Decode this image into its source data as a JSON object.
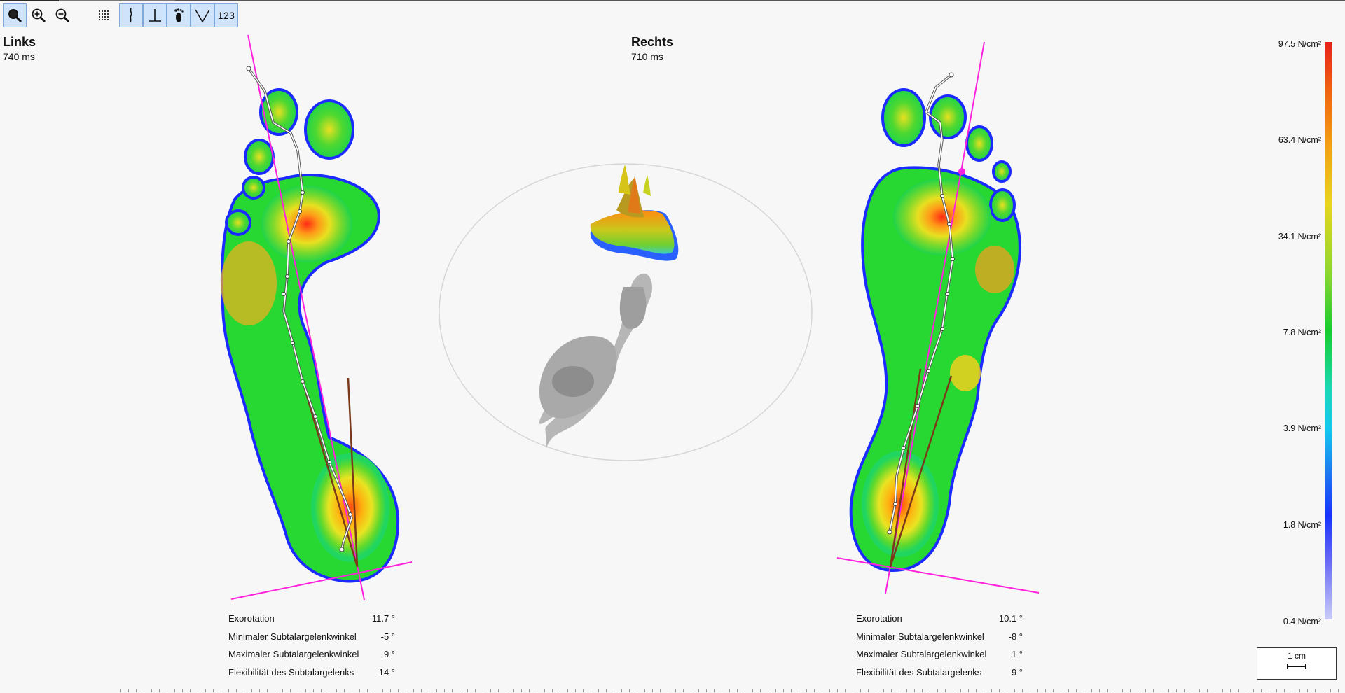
{
  "toolbar": {
    "buttons": [
      {
        "name": "zoom-select",
        "icon": "magnifier-icon"
      },
      {
        "name": "zoom-in",
        "icon": "zoom-in-icon"
      },
      {
        "name": "zoom-out",
        "icon": "zoom-out-icon"
      },
      {
        "name": "grid",
        "icon": "grid-dots-icon"
      },
      {
        "name": "gait-line",
        "icon": "gait-line-icon"
      },
      {
        "name": "perpendicular",
        "icon": "perpendicular-icon"
      },
      {
        "name": "foot",
        "icon": "foot-icon"
      },
      {
        "name": "angle",
        "icon": "angle-icon"
      },
      {
        "name": "values",
        "label": "123"
      }
    ]
  },
  "left": {
    "title": "Links",
    "duration": "740 ms",
    "stats": [
      {
        "label": "Exorotation",
        "value": "11.7 °"
      },
      {
        "label": "Minimaler Subtalargelenkwinkel",
        "value": "-5 °"
      },
      {
        "label": "Maximaler Subtalargelenkwinkel",
        "value": "9 °"
      },
      {
        "label": "Flexibilität des Subtalargelenks",
        "value": "14 °"
      }
    ]
  },
  "right": {
    "title": "Rechts",
    "duration": "710 ms",
    "stats": [
      {
        "label": "Exorotation",
        "value": "10.1 °"
      },
      {
        "label": "Minimaler Subtalargelenkwinkel",
        "value": "-8 °"
      },
      {
        "label": "Maximaler Subtalargelenkwinkel",
        "value": "1 °"
      },
      {
        "label": "Flexibilität des Subtalargelenks",
        "value": "9 °"
      }
    ]
  },
  "legend": {
    "labels": [
      "97.5 N/cm²",
      "63.4 N/cm²",
      "34.1 N/cm²",
      "7.8 N/cm²",
      "3.9 N/cm²",
      "1.8 N/cm²",
      "0.4 N/cm²"
    ]
  },
  "scale": {
    "label": "1 cm"
  },
  "colors": {
    "axis_line": "#ff22dd",
    "angle_line": "#7a3a1a",
    "gait_line": "#ffffff",
    "selected_button": "#cfe3fb"
  }
}
